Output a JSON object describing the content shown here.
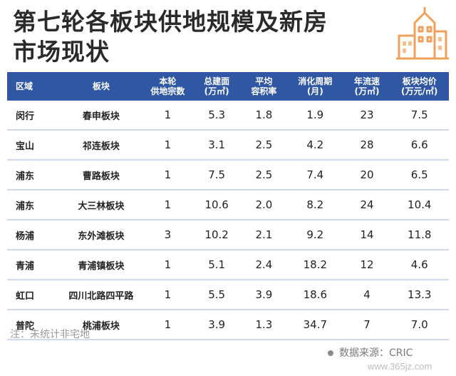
{
  "title": {
    "line1": "第七轮各板块供地规模及新房",
    "line2": "市场现状"
  },
  "accent_color": "#2f57a4",
  "logo_icon": "buildings-icon",
  "table": {
    "headers": [
      "区域",
      "板块",
      "本轮\n供地宗数",
      "总建面\n(万㎡)",
      "平均\n容积率",
      "消化周期\n(月)",
      "年流速\n(万㎡)",
      "板块均价\n(万元/㎡)"
    ],
    "rows": [
      [
        "闵行",
        "春申板块",
        "1",
        "5.3",
        "1.8",
        "1.9",
        "23",
        "7.5"
      ],
      [
        "宝山",
        "祁连板块",
        "1",
        "3.1",
        "2.5",
        "4.2",
        "28",
        "6.6"
      ],
      [
        "浦东",
        "曹路板块",
        "1",
        "7.5",
        "2.5",
        "7.4",
        "20",
        "6.5"
      ],
      [
        "浦东",
        "大三林板块",
        "1",
        "10.6",
        "2.0",
        "8.2",
        "24",
        "10.4"
      ],
      [
        "杨浦",
        "东外滩板块",
        "3",
        "10.2",
        "2.1",
        "9.2",
        "14",
        "11.8"
      ],
      [
        "青浦",
        "青浦镇板块",
        "1",
        "5.1",
        "2.4",
        "18.2",
        "12",
        "4.6"
      ],
      [
        "虹口",
        "四川北路四平路",
        "1",
        "5.5",
        "3.9",
        "18.6",
        "4",
        "13.3"
      ],
      [
        "普陀",
        "桃浦板块",
        "1",
        "3.9",
        "1.3",
        "34.7",
        "7",
        "7.0"
      ]
    ]
  },
  "note": "注：未统计非宅地",
  "source": "数据来源：CRIC",
  "watermark": "www.365jz.com"
}
